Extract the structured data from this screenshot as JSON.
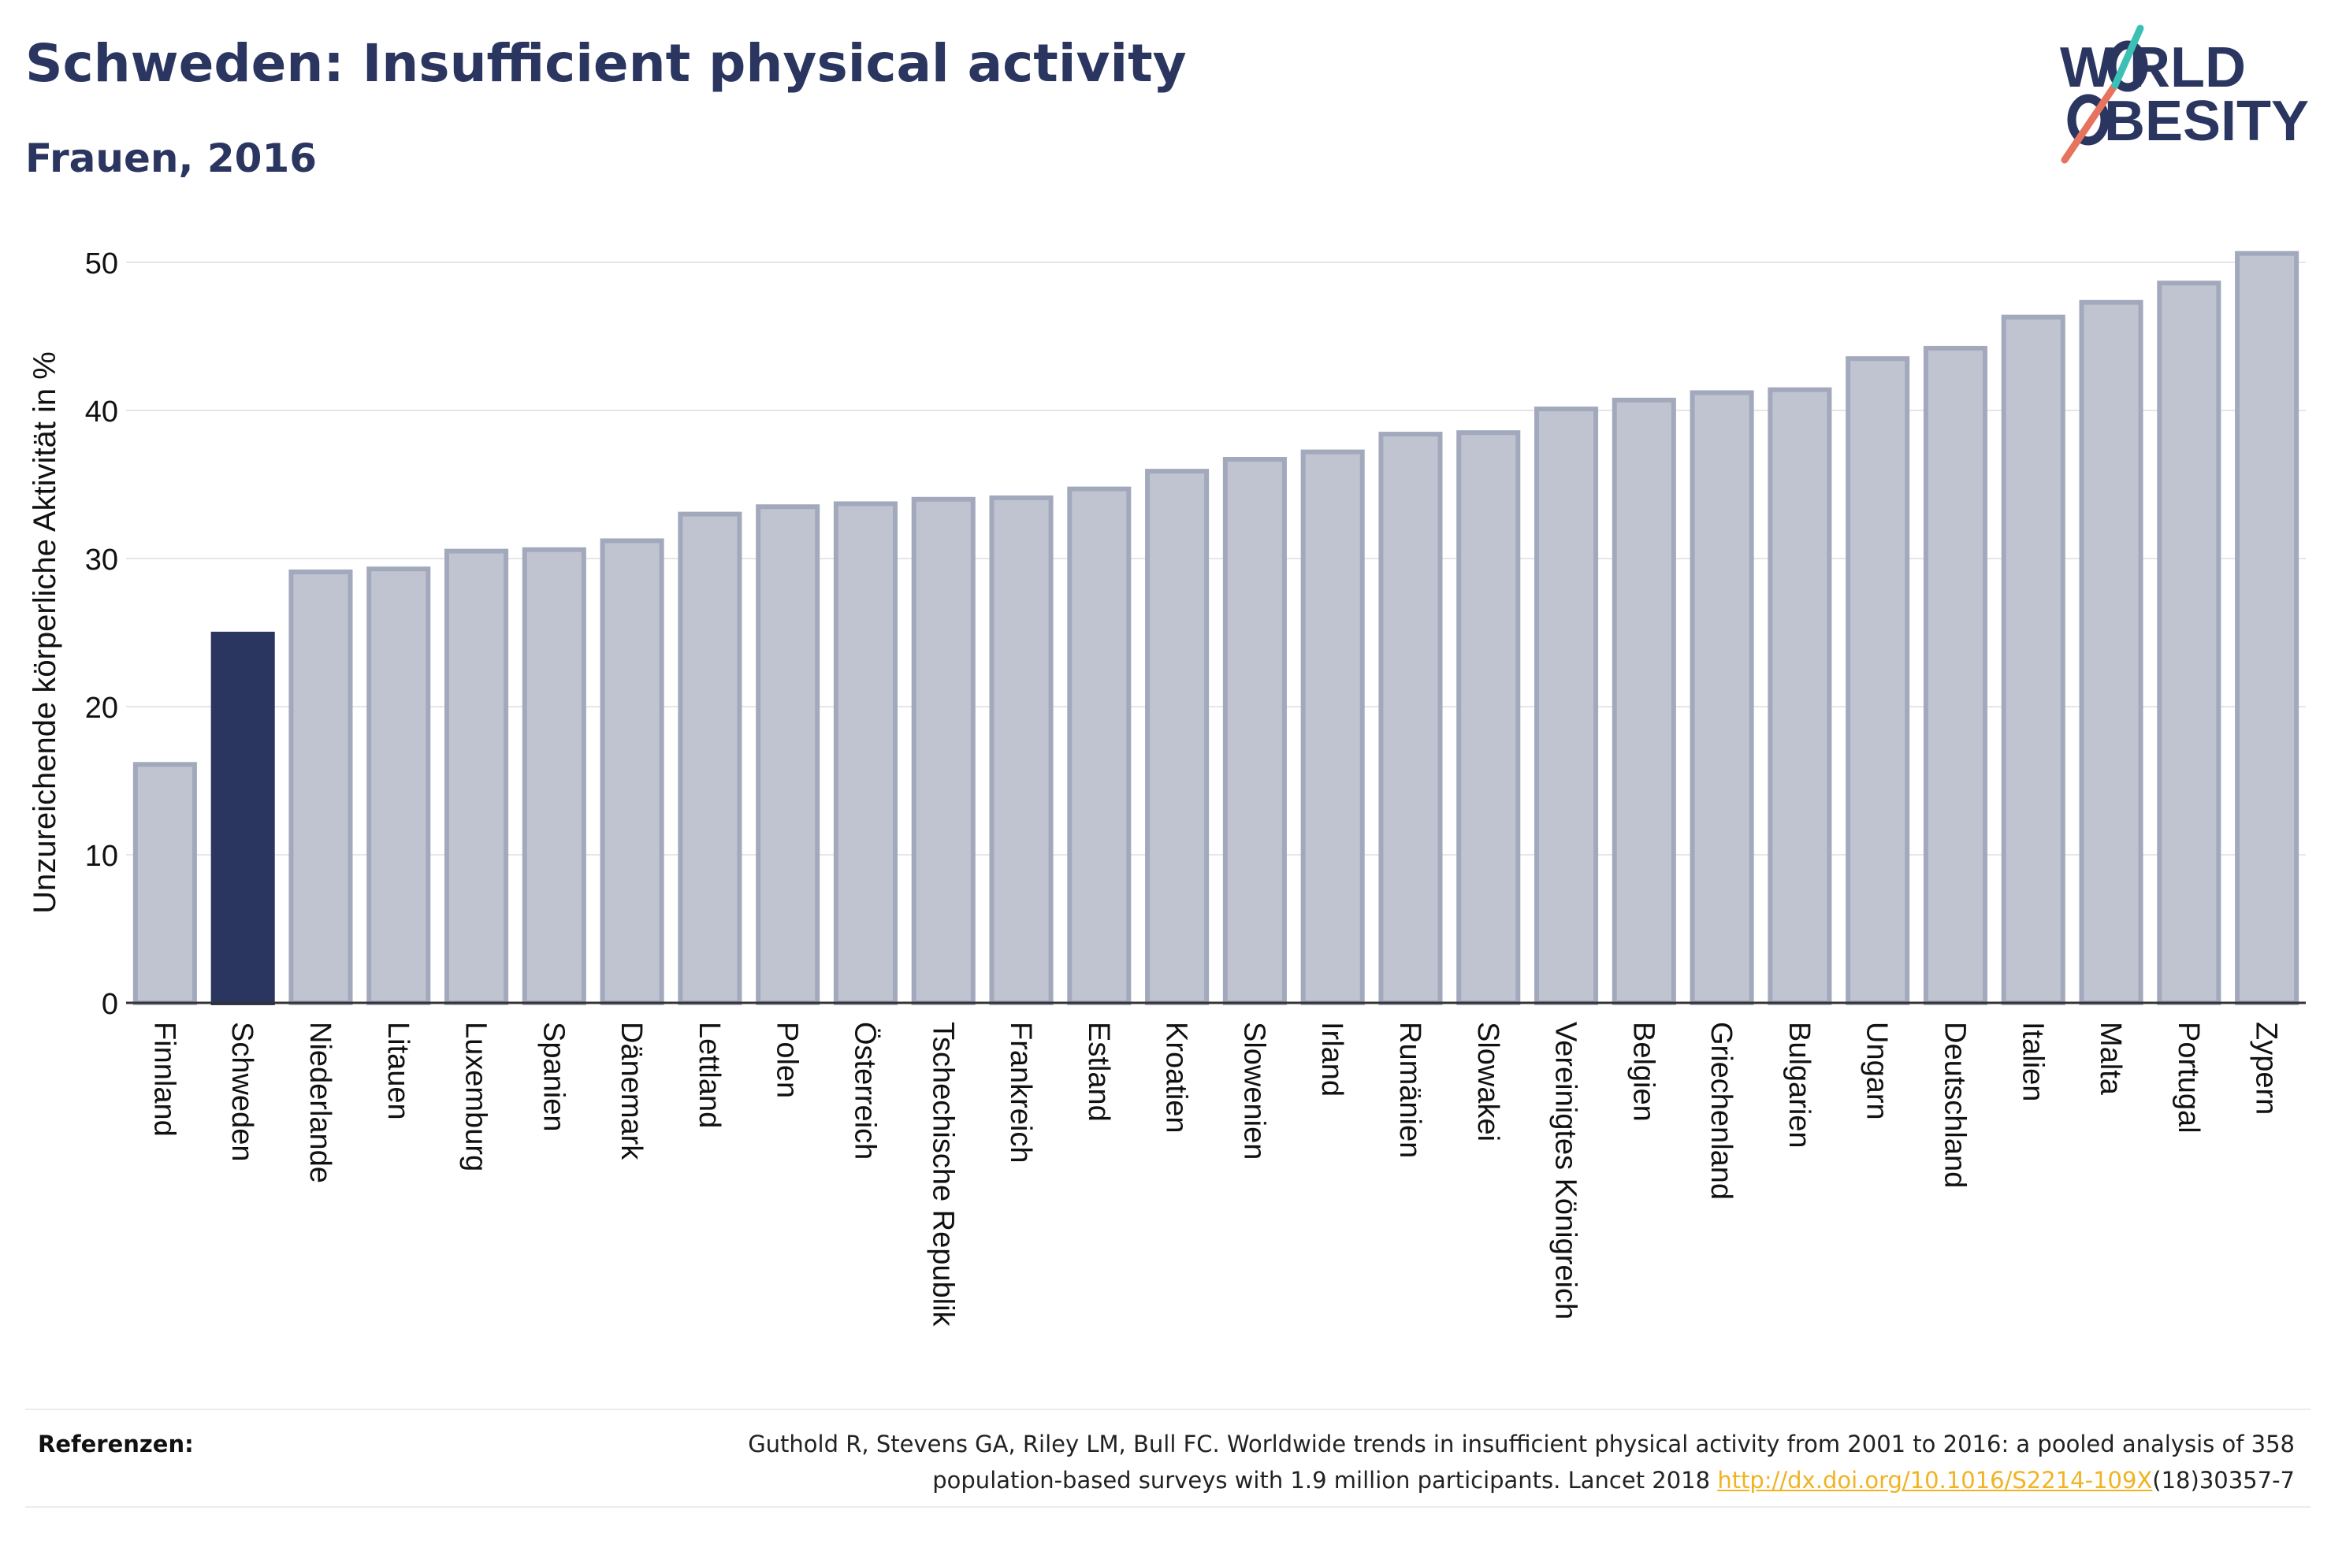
{
  "title": "Schweden: Insufficient physical activity",
  "subtitle": "Frauen, 2016",
  "logo": {
    "line1": "W RLD",
    "line2": "BESITY",
    "slash_color": "#e5735e",
    "slash_top_color": "#3cbfb4"
  },
  "colors": {
    "highlight": "#2b3660",
    "bar_fill": "#c0c4d0",
    "bar_stroke": "#a3a9bc",
    "grid": "#e6e6e6",
    "axis": "#333333"
  },
  "chart_data": {
    "type": "bar",
    "title": "",
    "xlabel": "",
    "ylabel": "Unzureichende körperliche Aktivität in %",
    "ylim": [
      0,
      52
    ],
    "yticks": [
      0,
      10,
      20,
      30,
      40,
      50
    ],
    "grid": true,
    "highlight": "Schweden",
    "categories": [
      "Finnland",
      "Schweden",
      "Niederlande",
      "Litauen",
      "Luxemburg",
      "Spanien",
      "Dänemark",
      "Lettland",
      "Polen",
      "Österreich",
      "Tschechische Republik",
      "Frankreich",
      "Estland",
      "Kroatien",
      "Slowenien",
      "Irland",
      "Rumänien",
      "Slowakei",
      "Vereinigtes Königreich",
      "Belgien",
      "Griechenland",
      "Bulgarien",
      "Ungarn",
      "Deutschland",
      "Italien",
      "Malta",
      "Portugal",
      "Zypern"
    ],
    "values": [
      16.1,
      24.9,
      29.1,
      29.3,
      30.5,
      30.6,
      31.2,
      33.0,
      33.5,
      33.7,
      34.0,
      34.1,
      34.7,
      35.9,
      36.7,
      37.2,
      38.4,
      38.5,
      40.1,
      40.7,
      41.2,
      41.4,
      43.5,
      44.2,
      46.3,
      47.3,
      48.6,
      50.6
    ]
  },
  "references": {
    "label": "Referenzen:",
    "line1": "Guthold R, Stevens GA, Riley LM, Bull FC. Worldwide trends in insufficient physical activity from 2001 to 2016: a pooled analysis of 358",
    "line2_pre": "population-based surveys with 1.9 million participants. Lancet 2018 ",
    "link": "http://dx.doi.org/10.1016/S2214-109X",
    "line2_post": "(18)30357-7"
  }
}
